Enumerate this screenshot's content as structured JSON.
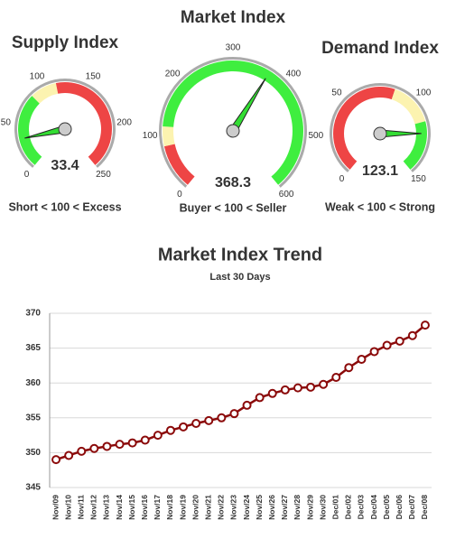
{
  "chart_data": [
    {
      "type": "gauge",
      "title": "Supply Index",
      "subtitle": "Short < 100 < Excess",
      "value": 33.4,
      "range": [
        0,
        250
      ],
      "ticks": [
        0,
        50,
        100,
        150,
        200,
        250
      ],
      "bands": [
        {
          "from": 0,
          "to": 85,
          "color": "#3fee3f"
        },
        {
          "from": 85,
          "to": 115,
          "color": "#fcf3b0"
        },
        {
          "from": 115,
          "to": 250,
          "color": "#ee4545"
        }
      ],
      "needle_color": "#33dd33"
    },
    {
      "type": "gauge",
      "title": "Market Index",
      "subtitle": "Buyer < 100 < Seller",
      "value": 368.3,
      "range": [
        0,
        600
      ],
      "ticks": [
        0,
        100,
        200,
        300,
        400,
        500,
        600
      ],
      "bands": [
        {
          "from": 0,
          "to": 80,
          "color": "#ee4545"
        },
        {
          "from": 80,
          "to": 115,
          "color": "#fcf3b0"
        },
        {
          "from": 115,
          "to": 600,
          "color": "#3fee3f"
        }
      ],
      "needle_color": "#33dd33"
    },
    {
      "type": "gauge",
      "title": "Demand Index",
      "subtitle": "Weak < 100 < Strong",
      "value": 123.1,
      "range": [
        0,
        150
      ],
      "ticks": [
        0,
        50,
        100,
        150
      ],
      "bands": [
        {
          "from": 0,
          "to": 85,
          "color": "#ee4545"
        },
        {
          "from": 85,
          "to": 115,
          "color": "#fcf3b0"
        },
        {
          "from": 115,
          "to": 150,
          "color": "#3fee3f"
        }
      ],
      "needle_color": "#33dd33"
    },
    {
      "type": "line",
      "title": "Market Index Trend",
      "subtitle": "Last 30 Days",
      "categories": [
        "Nov/09",
        "Nov/10",
        "Nov/11",
        "Nov/12",
        "Nov/13",
        "Nov/14",
        "Nov/15",
        "Nov/16",
        "Nov/17",
        "Nov/18",
        "Nov/19",
        "Nov/20",
        "Nov/21",
        "Nov/22",
        "Nov/23",
        "Nov/24",
        "Nov/25",
        "Nov/26",
        "Nov/27",
        "Nov/28",
        "Nov/29",
        "Nov/30",
        "Dec/01",
        "Dec/02",
        "Dec/03",
        "Dec/04",
        "Dec/05",
        "Dec/06",
        "Dec/07",
        "Dec/08"
      ],
      "values": [
        349.0,
        349.6,
        350.2,
        350.6,
        350.9,
        351.2,
        351.4,
        351.8,
        352.5,
        353.2,
        353.7,
        354.2,
        354.6,
        355.0,
        355.6,
        356.8,
        357.9,
        358.5,
        359.0,
        359.3,
        359.4,
        359.8,
        360.8,
        362.2,
        363.4,
        364.5,
        365.4,
        366.0,
        366.8,
        368.3
      ],
      "color": "#8b0a0a",
      "ylim": [
        345,
        370
      ],
      "yticks": [
        345,
        350,
        355,
        360,
        365,
        370
      ],
      "grid": true
    }
  ]
}
